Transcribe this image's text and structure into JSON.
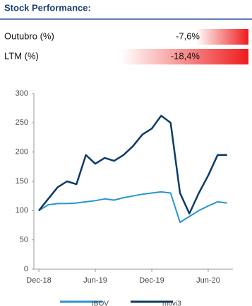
{
  "header": {
    "title": "Stock Performance:"
  },
  "performance": {
    "rows": [
      {
        "label": "Outubro (%)",
        "value": -7.6,
        "value_label": "-7,6%"
      },
      {
        "label": "LTM (%)",
        "value": -18.4,
        "value_label": "-18,4%"
      }
    ]
  },
  "chart_data": {
    "type": "line",
    "x": [
      "2018-12",
      "2019-01",
      "2019-02",
      "2019-03",
      "2019-04",
      "2019-05",
      "2019-06",
      "2019-07",
      "2019-08",
      "2019-09",
      "2019-10",
      "2019-11",
      "2019-12",
      "2020-01",
      "2020-02",
      "2020-03",
      "2020-04",
      "2020-05",
      "2020-06",
      "2020-07",
      "2020-08"
    ],
    "series": [
      {
        "name": "IBOV",
        "color": "#2a95d0",
        "values": [
          100,
          110,
          112,
          112,
          113,
          115,
          117,
          120,
          118,
          122,
          125,
          128,
          130,
          132,
          130,
          80,
          90,
          100,
          108,
          115,
          113
        ]
      },
      {
        "name": "movi3",
        "color": "#0d3b66",
        "values": [
          100,
          120,
          140,
          150,
          145,
          195,
          180,
          190,
          185,
          195,
          210,
          230,
          240,
          262,
          250,
          130,
          95,
          130,
          160,
          195,
          195
        ]
      }
    ],
    "xlim": [
      "2018-12",
      "2020-09"
    ],
    "xticks": [
      {
        "value": "2018-12",
        "label": "Dec-18"
      },
      {
        "value": "2019-06",
        "label": "Jun-19"
      },
      {
        "value": "2019-12",
        "label": "Dec-19"
      },
      {
        "value": "2020-06",
        "label": "Jun-20"
      }
    ],
    "ylim": [
      0,
      300
    ],
    "yticks": [
      0,
      50,
      100,
      150,
      200,
      250,
      300
    ]
  }
}
